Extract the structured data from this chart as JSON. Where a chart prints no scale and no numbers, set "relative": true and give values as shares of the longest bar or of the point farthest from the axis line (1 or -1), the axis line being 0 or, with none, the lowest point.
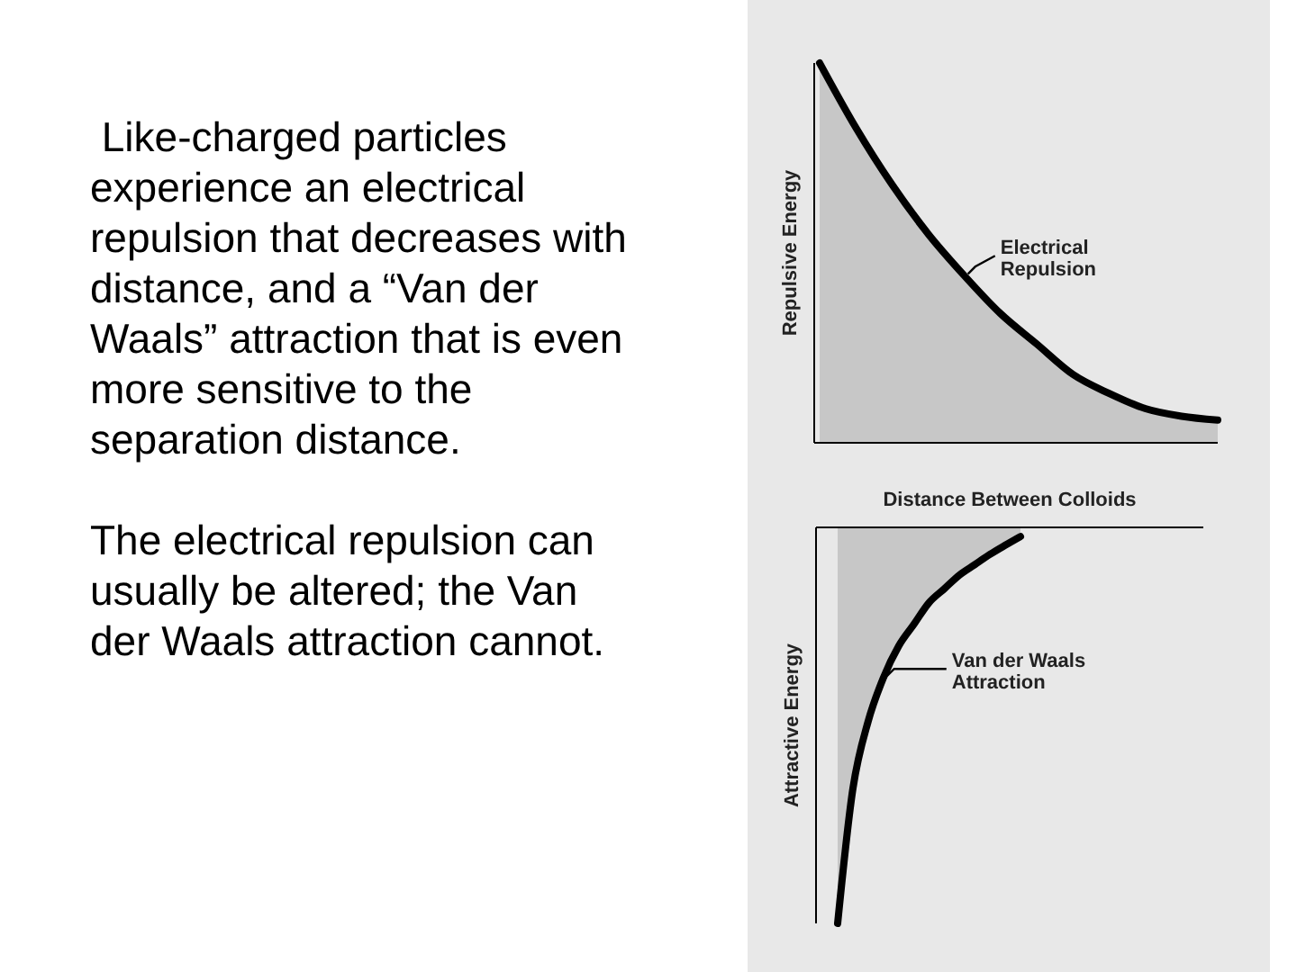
{
  "chart_data": [
    {
      "type": "other",
      "annotations": [
        " Like-charged particles experience an electrical repulsion that decreases with distance, and a “Van der Waals” attraction that is even more sensitive to the separation distance.",
        "The electrical repulsion can usually be altered; the Van der Waals attraction cannot."
      ]
    },
    {
      "type": "area",
      "relative": true,
      "ylabel": "Repulsive Energy",
      "categories": [
        null,
        null,
        null,
        null,
        null,
        null,
        null,
        null,
        null,
        null,
        null,
        null
      ],
      "series": [
        {
          "name": "Electrical Repulsion",
          "color": "#000000",
          "values": [
            1,
            0.83,
            0.68,
            0.55,
            0.44,
            0.34,
            0.26,
            0.18,
            0.13,
            0.09,
            0.07,
            0.06
          ]
        }
      ]
    },
    {
      "type": "area",
      "relative": true,
      "xlabel": "Distance Between Colloids",
      "ylabel": "Attractive Energy",
      "categories": [
        null,
        null,
        null,
        null,
        null,
        null,
        null,
        null,
        null,
        null,
        null,
        null,
        null,
        null,
        null,
        null,
        null,
        null,
        null,
        null,
        null,
        null,
        null,
        null,
        null
      ],
      "series": [
        {
          "name": "Van der Waals Attraction",
          "color": "#000000",
          "values": [
            -1,
            -0.66,
            -0.49,
            -0.38,
            -0.3,
            -0.245,
            -0.19,
            -0.155,
            -0.12,
            -0.094,
            -0.068,
            -0.045,
            -0.023,
            null,
            null,
            null,
            null,
            null,
            null,
            null,
            null,
            null,
            null,
            null,
            null
          ]
        }
      ]
    }
  ]
}
